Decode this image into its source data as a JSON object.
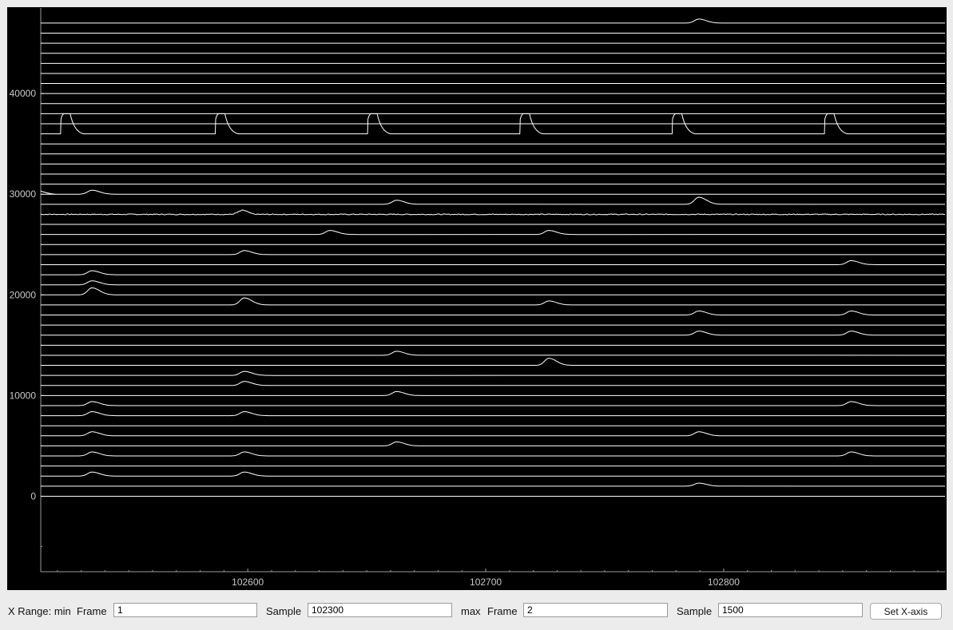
{
  "colors": {
    "plot_background": "#000000",
    "trace_color": "#ffffff",
    "axis_text": "#c8c8c8",
    "panel_background": "#ececec"
  },
  "chart_data": {
    "type": "line",
    "title": "",
    "xlabel": "",
    "ylabel": "",
    "xlim": [
      102513,
      102893
    ],
    "ylim": [
      -7500,
      48500
    ],
    "x_ticks": [
      102600,
      102700,
      102800
    ],
    "x_tick_labels": [
      "102600",
      "102700",
      "102800"
    ],
    "y_ticks": [
      0,
      10000,
      20000,
      30000,
      40000
    ],
    "y_tick_labels": [
      "0",
      "10000",
      "20000",
      "30000",
      "40000"
    ],
    "grid": false,
    "trace_count": 48,
    "trace_spacing": 1000,
    "trace_baselines_start": 0,
    "noisy_trace_baseline": 28000,
    "large_pulse_trace": {
      "baseline": 36000,
      "height": 2000,
      "x": [
        102521,
        102586,
        102650,
        102714,
        102778,
        102842
      ]
    },
    "peaks": [
      {
        "baseline": 1000,
        "x": 102788,
        "height": 300
      },
      {
        "baseline": 2000,
        "x": 102533,
        "height": 400
      },
      {
        "baseline": 2000,
        "x": 102597,
        "height": 400
      },
      {
        "baseline": 4000,
        "x": 102533,
        "height": 400
      },
      {
        "baseline": 4000,
        "x": 102597,
        "height": 400
      },
      {
        "baseline": 4000,
        "x": 102852,
        "height": 400
      },
      {
        "baseline": 5000,
        "x": 102661,
        "height": 400
      },
      {
        "baseline": 6000,
        "x": 102533,
        "height": 400
      },
      {
        "baseline": 6000,
        "x": 102788,
        "height": 400
      },
      {
        "baseline": 8000,
        "x": 102533,
        "height": 400
      },
      {
        "baseline": 8000,
        "x": 102597,
        "height": 400
      },
      {
        "baseline": 9000,
        "x": 102533,
        "height": 400
      },
      {
        "baseline": 9000,
        "x": 102852,
        "height": 400
      },
      {
        "baseline": 10000,
        "x": 102661,
        "height": 400
      },
      {
        "baseline": 11000,
        "x": 102597,
        "height": 400
      },
      {
        "baseline": 12000,
        "x": 102597,
        "height": 400
      },
      {
        "baseline": 13000,
        "x": 102725,
        "height": 700
      },
      {
        "baseline": 14000,
        "x": 102661,
        "height": 400
      },
      {
        "baseline": 16000,
        "x": 102788,
        "height": 400
      },
      {
        "baseline": 16000,
        "x": 102852,
        "height": 400
      },
      {
        "baseline": 18000,
        "x": 102788,
        "height": 400
      },
      {
        "baseline": 18000,
        "x": 102852,
        "height": 400
      },
      {
        "baseline": 19000,
        "x": 102597,
        "height": 700
      },
      {
        "baseline": 19000,
        "x": 102725,
        "height": 400
      },
      {
        "baseline": 20000,
        "x": 102533,
        "height": 700
      },
      {
        "baseline": 21000,
        "x": 102533,
        "height": 400
      },
      {
        "baseline": 22000,
        "x": 102533,
        "height": 400
      },
      {
        "baseline": 23000,
        "x": 102852,
        "height": 400
      },
      {
        "baseline": 24000,
        "x": 102597,
        "height": 400
      },
      {
        "baseline": 26000,
        "x": 102633,
        "height": 400
      },
      {
        "baseline": 26000,
        "x": 102725,
        "height": 400
      },
      {
        "baseline": 28000,
        "x": 102597,
        "height": 400
      },
      {
        "baseline": 29000,
        "x": 102661,
        "height": 400
      },
      {
        "baseline": 29000,
        "x": 102788,
        "height": 700
      },
      {
        "baseline": 30000,
        "x": 102533,
        "height": 400
      },
      {
        "baseline": 47000,
        "x": 102788,
        "height": 400
      }
    ]
  },
  "controls": {
    "x_range_label": "X Range: min",
    "min_frame_label": "Frame",
    "min_frame_value": "1",
    "min_sample_label": "Sample",
    "min_sample_value": "102300",
    "max_label": "max",
    "max_frame_label": "Frame",
    "max_frame_value": "2",
    "max_sample_label": "Sample",
    "max_sample_value": "1500",
    "set_x_axis_label": "Set X-axis"
  }
}
